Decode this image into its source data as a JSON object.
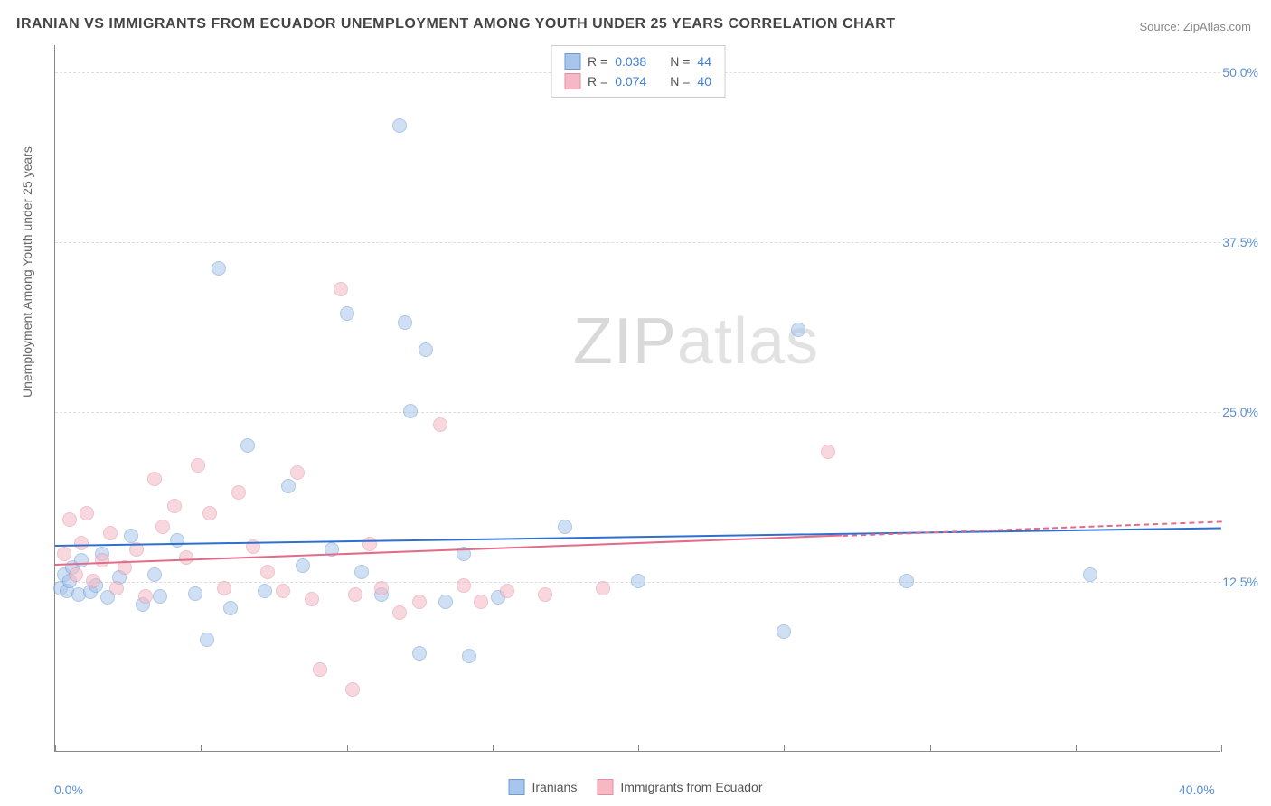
{
  "title": "IRANIAN VS IMMIGRANTS FROM ECUADOR UNEMPLOYMENT AMONG YOUTH UNDER 25 YEARS CORRELATION CHART",
  "source": "Source: ZipAtlas.com",
  "watermark_a": "ZIP",
  "watermark_b": "atlas",
  "chart": {
    "type": "scatter",
    "ylabel": "Unemployment Among Youth under 25 years",
    "xlim": [
      0,
      40
    ],
    "ylim": [
      0,
      52
    ],
    "xtick_positions": [
      0,
      5,
      10,
      15,
      20,
      25,
      30,
      35,
      40
    ],
    "xtick_labels_shown": {
      "0": "0.0%",
      "40": "40.0%"
    },
    "ytick_positions": [
      12.5,
      25.0,
      37.5,
      50.0
    ],
    "ytick_labels": [
      "12.5%",
      "25.0%",
      "37.5%",
      "50.0%"
    ],
    "background_color": "#ffffff",
    "grid_color": "#dddddd",
    "axis_color": "#888888",
    "label_fontsize": 14,
    "title_fontsize": 16,
    "marker_radius": 8,
    "series": [
      {
        "name": "Iranians",
        "r": 0.038,
        "n": 44,
        "fill": "#a8c6ec",
        "stroke": "#6b9bd1",
        "fill_opacity": 0.55,
        "trend_color": "#2f6fd0",
        "trend": {
          "x0": 0,
          "y0": 15.2,
          "x1": 40,
          "y1": 16.5,
          "solid_until_x": 40
        },
        "points": [
          [
            0.2,
            12.0
          ],
          [
            0.3,
            13.0
          ],
          [
            0.4,
            11.8
          ],
          [
            0.5,
            12.5
          ],
          [
            0.6,
            13.5
          ],
          [
            0.8,
            11.5
          ],
          [
            0.9,
            14.0
          ],
          [
            1.2,
            11.7
          ],
          [
            1.4,
            12.2
          ],
          [
            1.6,
            14.5
          ],
          [
            1.8,
            11.3
          ],
          [
            2.2,
            12.8
          ],
          [
            2.6,
            15.8
          ],
          [
            3.0,
            10.8
          ],
          [
            3.4,
            13.0
          ],
          [
            3.6,
            11.4
          ],
          [
            4.2,
            15.5
          ],
          [
            4.8,
            11.6
          ],
          [
            5.2,
            8.2
          ],
          [
            5.6,
            35.5
          ],
          [
            6.0,
            10.5
          ],
          [
            6.6,
            22.5
          ],
          [
            7.2,
            11.8
          ],
          [
            8.0,
            19.5
          ],
          [
            8.5,
            13.6
          ],
          [
            9.5,
            14.8
          ],
          [
            10.0,
            32.2
          ],
          [
            10.5,
            13.2
          ],
          [
            11.2,
            11.5
          ],
          [
            11.8,
            46.0
          ],
          [
            12.0,
            31.5
          ],
          [
            12.2,
            25.0
          ],
          [
            12.5,
            7.2
          ],
          [
            12.7,
            29.5
          ],
          [
            13.4,
            11.0
          ],
          [
            14.0,
            14.5
          ],
          [
            14.2,
            7.0
          ],
          [
            15.2,
            11.3
          ],
          [
            17.5,
            16.5
          ],
          [
            20.0,
            12.5
          ],
          [
            25.0,
            8.8
          ],
          [
            25.5,
            31.0
          ],
          [
            29.2,
            12.5
          ],
          [
            35.5,
            13.0
          ]
        ]
      },
      {
        "name": "Immigrants from Ecuador",
        "r": 0.074,
        "n": 40,
        "fill": "#f5b8c4",
        "stroke": "#e38fa1",
        "fill_opacity": 0.55,
        "trend_color": "#e36b8a",
        "trend": {
          "x0": 0,
          "y0": 13.8,
          "x1": 40,
          "y1": 17.0,
          "solid_until_x": 27
        },
        "points": [
          [
            0.3,
            14.5
          ],
          [
            0.5,
            17.0
          ],
          [
            0.7,
            13.0
          ],
          [
            0.9,
            15.3
          ],
          [
            1.1,
            17.5
          ],
          [
            1.3,
            12.5
          ],
          [
            1.6,
            14.0
          ],
          [
            1.9,
            16.0
          ],
          [
            2.1,
            12.0
          ],
          [
            2.4,
            13.5
          ],
          [
            2.8,
            14.8
          ],
          [
            3.1,
            11.4
          ],
          [
            3.4,
            20.0
          ],
          [
            3.7,
            16.5
          ],
          [
            4.1,
            18.0
          ],
          [
            4.5,
            14.2
          ],
          [
            4.9,
            21.0
          ],
          [
            5.3,
            17.5
          ],
          [
            5.8,
            12.0
          ],
          [
            6.3,
            19.0
          ],
          [
            6.8,
            15.0
          ],
          [
            7.3,
            13.2
          ],
          [
            7.8,
            11.8
          ],
          [
            8.3,
            20.5
          ],
          [
            8.8,
            11.2
          ],
          [
            9.1,
            6.0
          ],
          [
            9.8,
            34.0
          ],
          [
            10.2,
            4.5
          ],
          [
            10.8,
            15.2
          ],
          [
            11.2,
            12.0
          ],
          [
            11.8,
            10.2
          ],
          [
            12.5,
            11.0
          ],
          [
            13.2,
            24.0
          ],
          [
            14.0,
            12.2
          ],
          [
            14.6,
            11.0
          ],
          [
            15.5,
            11.8
          ],
          [
            16.8,
            11.5
          ],
          [
            18.8,
            12.0
          ],
          [
            26.5,
            22.0
          ],
          [
            10.3,
            11.5
          ]
        ]
      }
    ]
  },
  "legend_top": {
    "labels": {
      "r": "R =",
      "n": "N ="
    }
  },
  "legend_bottom": {
    "items": [
      {
        "label": "Iranians",
        "fill": "#a8c6ec",
        "stroke": "#6b9bd1"
      },
      {
        "label": "Immigrants from Ecuador",
        "fill": "#f5b8c4",
        "stroke": "#e38fa1"
      }
    ]
  }
}
